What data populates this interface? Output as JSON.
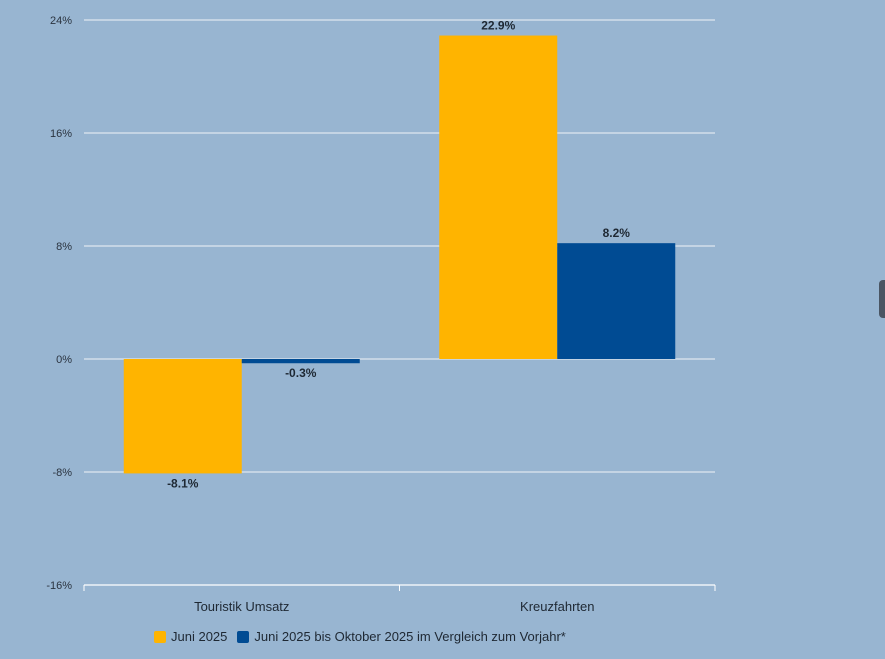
{
  "chart_data": {
    "type": "bar",
    "categories": [
      "Touristik Umsatz",
      "Kreuzfahrten"
    ],
    "series": [
      {
        "name": "Juni 2025",
        "color": "#ffb400",
        "values": [
          -8.1,
          22.9
        ],
        "labels": [
          "-8.1%",
          "22.9%"
        ]
      },
      {
        "name": "Juni 2025 bis Oktober 2025 im Vergleich zum Vorjahr*",
        "color": "#004b93",
        "values": [
          -0.3,
          8.2
        ],
        "labels": [
          "-0.3%",
          "8.2%"
        ]
      }
    ],
    "yticks": [
      24,
      16,
      8,
      0,
      -8,
      -16
    ],
    "ytick_labels": [
      "24%",
      "16%",
      "8%",
      "0%",
      "-8%",
      "-16%"
    ],
    "ylim": [
      -16,
      24
    ],
    "grid": true,
    "legend_position": "bottom"
  }
}
